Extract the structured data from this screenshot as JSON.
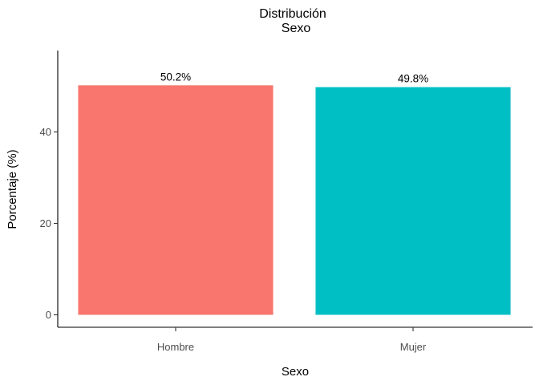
{
  "chart_data": {
    "type": "bar",
    "title": "Distribución",
    "subtitle": "Sexo",
    "xlabel": "Sexo",
    "ylabel": "Porcentaje (%)",
    "categories": [
      "Hombre",
      "Mujer"
    ],
    "values": [
      50.2,
      49.8
    ],
    "data_labels": [
      "50.2%",
      "49.8%"
    ],
    "colors": [
      "#F8766D",
      "#00BFC4"
    ],
    "ylim": [
      0,
      55.2
    ],
    "yticks": [
      0,
      20,
      40
    ],
    "grid": false,
    "legend": "none"
  }
}
